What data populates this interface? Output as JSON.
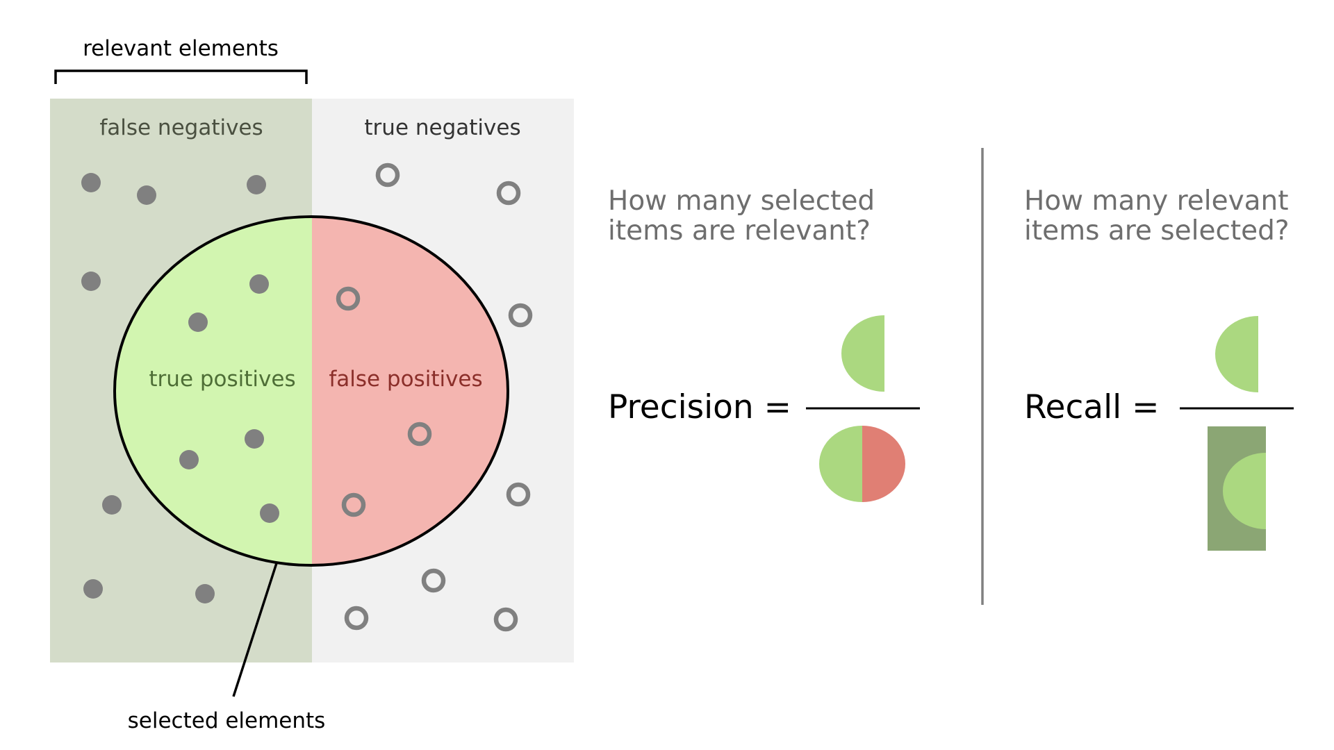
{
  "labels": {
    "relevant_elements": "relevant elements",
    "false_negatives": "false negatives",
    "true_negatives": "true negatives",
    "true_positives": "true positives",
    "false_positives": "false positives",
    "selected_elements": "selected elements"
  },
  "precision": {
    "question_line1": "How many selected",
    "question_line2": "items are relevant?",
    "label": "Precision ="
  },
  "recall": {
    "question_line1": "How many relevant",
    "question_line2": "items are selected?",
    "label": "Recall ="
  },
  "colors": {
    "relevant_region": "#d4dcc9",
    "nonrelevant_region": "#f1f1f1",
    "true_positive_fill": "#d2f5b0",
    "false_positive_fill": "#f4b5b0",
    "dot": "#808080",
    "icon_green": "#abd880",
    "icon_red": "#e07f74",
    "icon_dark_green": "#8ba674",
    "question_text": "#6e6e6e",
    "tp_text": "#4e6e36",
    "fp_text": "#8b2f2a",
    "region_text": "#4a5040"
  }
}
